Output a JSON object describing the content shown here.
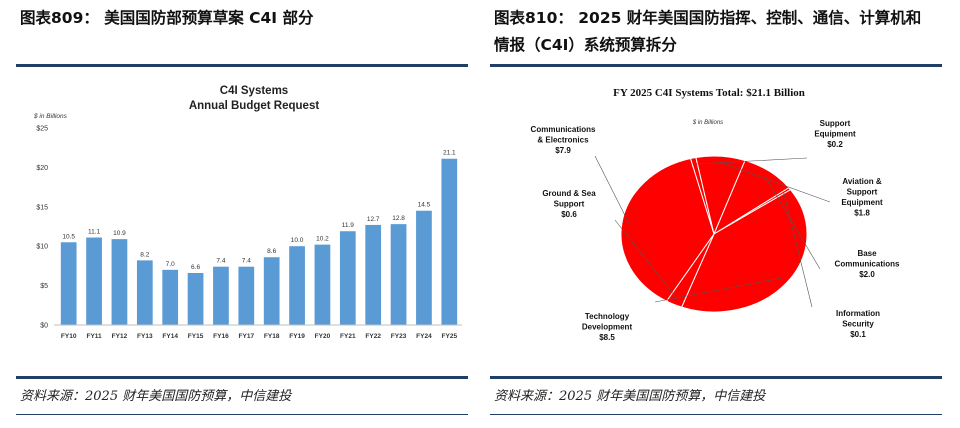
{
  "left": {
    "heading": "图表809：  美国国防部预算草案 C4I 部分",
    "source": "资料来源：2025 财年美国国防预算，中信建投"
  },
  "right": {
    "heading_line1": "图表810：  2025 财年美国国防指挥、控制、通信、计算机和",
    "heading_line2": "情报（C4I）系统预算拆分",
    "source": "资料来源：2025 财年美国国防预算，中信建投"
  },
  "chart_data": [
    {
      "type": "bar",
      "title": "C4I Systems",
      "subtitle": "Annual Budget Request",
      "unit_note": "$ in Billions",
      "categories": [
        "FY10",
        "FY11",
        "FY12",
        "FY13",
        "FY14",
        "FY15",
        "FY16",
        "FY17",
        "FY18",
        "FY19",
        "FY20",
        "FY21",
        "FY22",
        "FY23",
        "FY24",
        "FY25"
      ],
      "values": [
        10.5,
        11.1,
        10.9,
        8.2,
        7.0,
        6.6,
        7.4,
        7.4,
        8.6,
        10.0,
        10.2,
        11.9,
        12.7,
        12.8,
        14.5,
        21.1
      ],
      "data_labels": [
        "10.5",
        "11.1",
        "10.9",
        "8.2",
        "7.0",
        "6.6",
        "7.4",
        "7.4",
        "8.6",
        "10.0",
        "10.2",
        "11.9",
        "12.7",
        "12.8",
        "14.5",
        "21.1"
      ],
      "yticks": [
        "$0",
        "$5",
        "$10",
        "$15",
        "$20",
        "$25"
      ],
      "ylim": [
        0,
        25
      ],
      "grid": false,
      "color": "#5b9bd5"
    },
    {
      "type": "pie",
      "title": "FY 2025 C4I Systems Total:  $21.1 Billion",
      "unit_note": "$ in Billions",
      "color": "#ff0000",
      "slices": [
        {
          "label": "Communications & Electronics",
          "value_label": "$7.9",
          "value": 7.9
        },
        {
          "label": "Support Equipment",
          "value_label": "$0.2",
          "value": 0.2
        },
        {
          "label": "Aviation & Support Equipment",
          "value_label": "$1.8",
          "value": 1.8
        },
        {
          "label": "Base Communications",
          "value_label": "$2.0",
          "value": 2.0
        },
        {
          "label": "Information Security",
          "value_label": "$0.1",
          "value": 0.1
        },
        {
          "label": "Technology Development",
          "value_label": "$8.5",
          "value": 8.5
        },
        {
          "label": "Ground & Sea Support",
          "value_label": "$0.6",
          "value": 0.6
        }
      ]
    }
  ]
}
